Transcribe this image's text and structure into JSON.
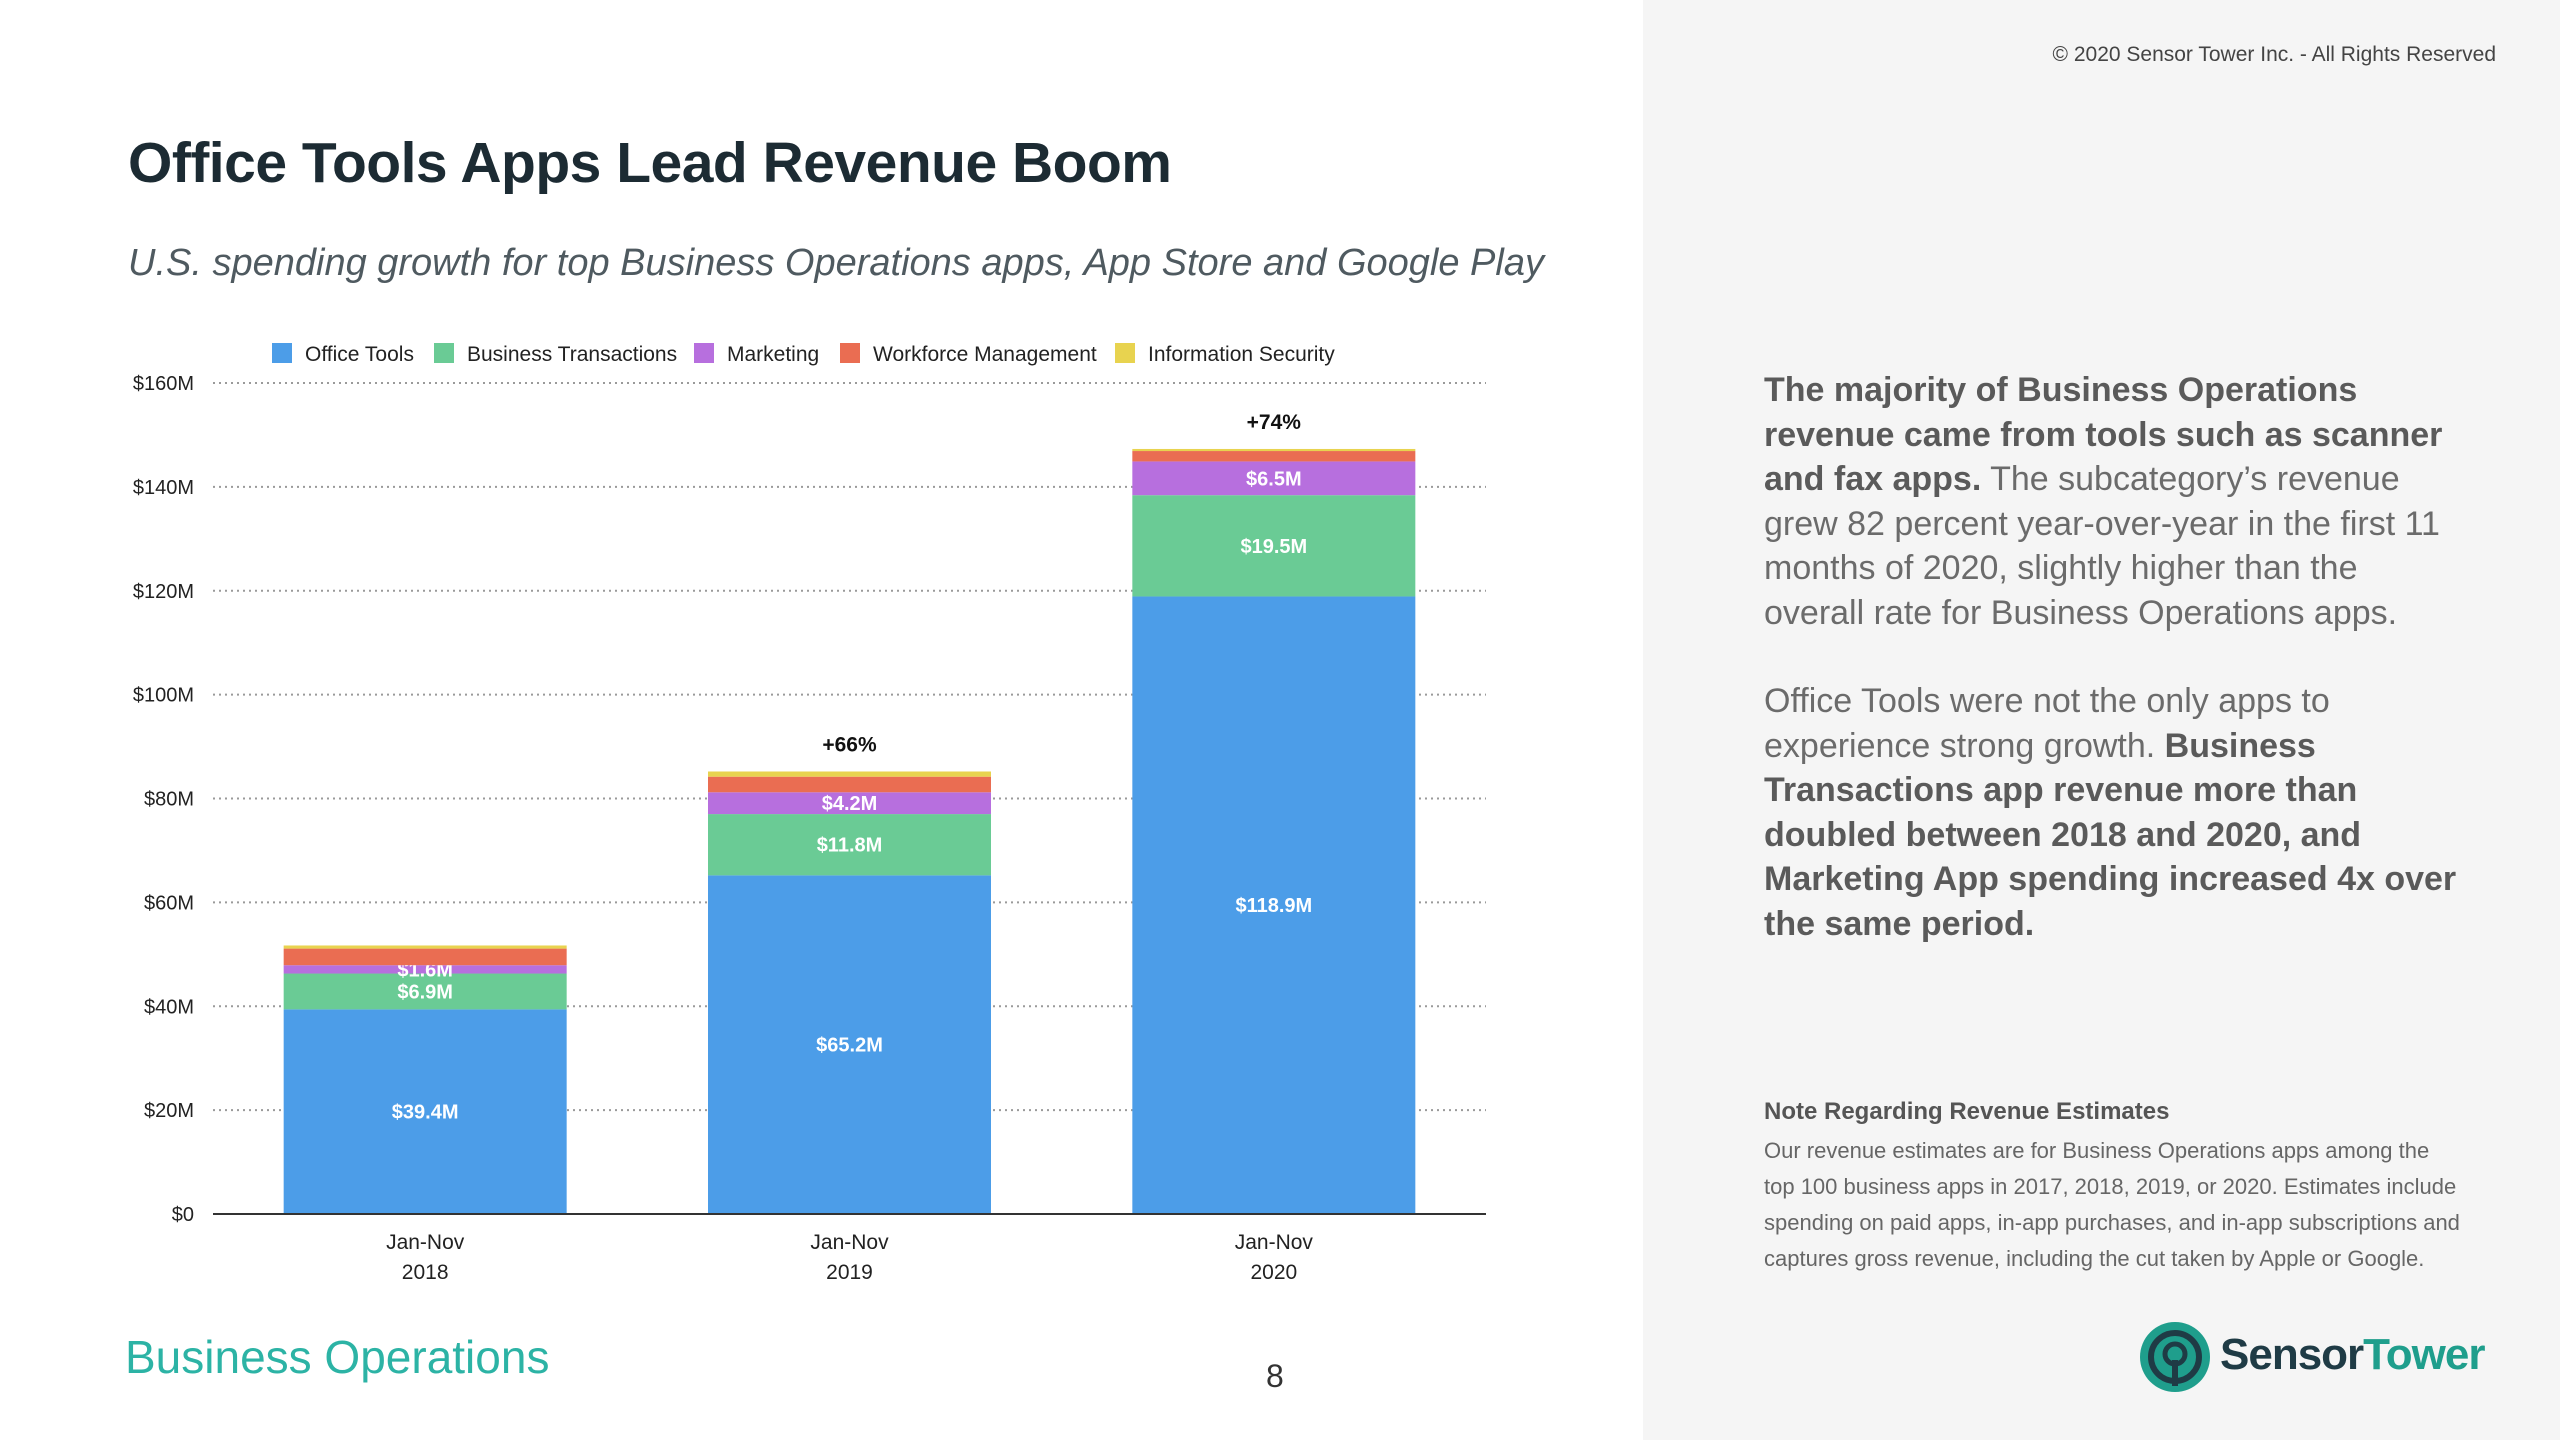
{
  "page": {
    "title": "Office Tools Apps Lead Revenue Boom",
    "subtitle": "U.S. spending growth for top Business Operations apps, App Store and Google Play",
    "copyright": "© 2020 Sensor Tower Inc. - All Rights Reserved",
    "section_name": "Business Operations",
    "page_number": "8",
    "logo_text_1": "Sensor",
    "logo_text_2": "Tower"
  },
  "sidebar": {
    "para1_bold": "The majority of Business Operations revenue came from tools such as scanner and fax apps.",
    "para1_rest": " The subcategory’s revenue grew 82 percent year-over-year in the first 11 months of 2020, slightly higher than the overall rate for Business Operations apps.",
    "para2_lead": "Office Tools were not the only apps to experience strong growth. ",
    "para2_bold": "Business Transactions app revenue more than doubled between 2018 and 2020, and Marketing App spending increased 4x over the same period.",
    "note_title": "Note Regarding Revenue Estimates",
    "note_text": "Our revenue estimates are for Business Operations apps among the top 100 business apps in 2017, 2018, 2019, or 2020. Estimates include spending on paid apps, in-app purchases, and in-app subscriptions and captures gross revenue, including the cut taken by Apple or Google."
  },
  "chart_data": {
    "type": "bar",
    "stacked": true,
    "categories": [
      [
        "Jan-Nov",
        "2018"
      ],
      [
        "Jan-Nov",
        "2019"
      ],
      [
        "Jan-Nov",
        "2020"
      ]
    ],
    "series": [
      {
        "name": "Office Tools",
        "color": "#4c9de8",
        "values": [
          39.4,
          65.2,
          118.9
        ],
        "labels": [
          "$39.4M",
          "$65.2M",
          "$118.9M"
        ]
      },
      {
        "name": "Business Transactions",
        "color": "#6acb95",
        "values": [
          6.9,
          11.8,
          19.5
        ],
        "labels": [
          "$6.9M",
          "$11.8M",
          "$19.5M"
        ]
      },
      {
        "name": "Marketing",
        "color": "#b76fde",
        "values": [
          1.6,
          4.2,
          6.5
        ],
        "labels": [
          "$1.6M",
          "$4.2M",
          "$6.5M"
        ]
      },
      {
        "name": "Workforce Management",
        "color": "#ea6d52",
        "values": [
          3.2,
          3.0,
          2.0
        ],
        "labels": [
          "",
          "",
          ""
        ]
      },
      {
        "name": "Information Security",
        "color": "#e8d34f",
        "values": [
          0.6,
          1.0,
          0.4
        ],
        "labels": [
          "",
          "",
          ""
        ]
      }
    ],
    "growth_labels": [
      "",
      "+66%",
      "+74%"
    ],
    "yticks": [
      "$0",
      "$20M",
      "$40M",
      "$60M",
      "$80M",
      "$100M",
      "$120M",
      "$140M",
      "$160M"
    ],
    "ylim": [
      0,
      160
    ],
    "grid": true,
    "legend": "top"
  }
}
